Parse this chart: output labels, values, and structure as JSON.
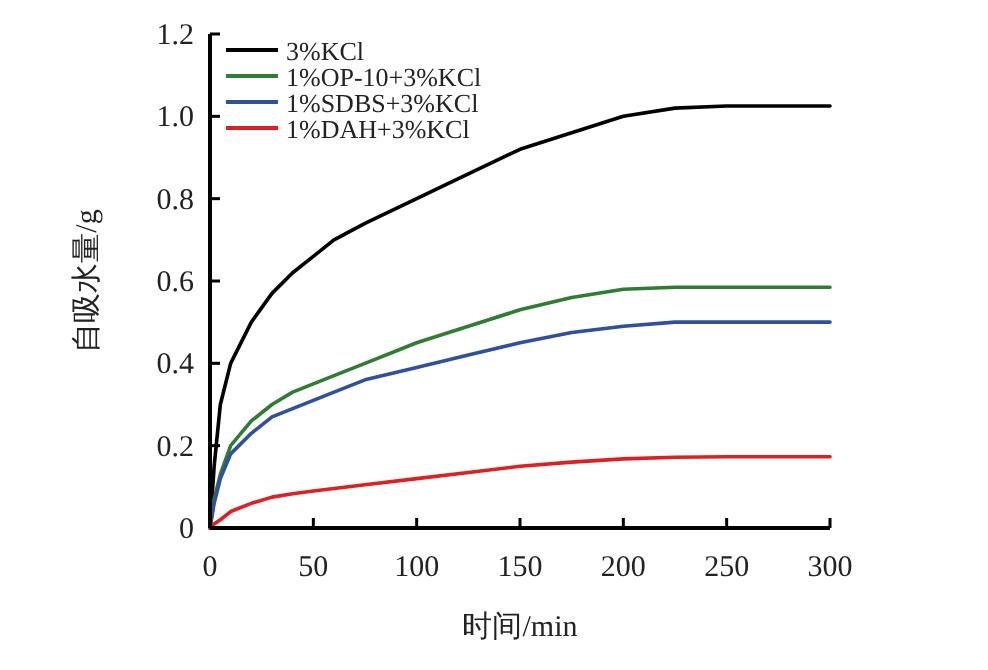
{
  "chart_data": {
    "type": "line",
    "xlabel": "时间/min",
    "ylabel": "自吸水量/g",
    "xlim": [
      0,
      300
    ],
    "ylim": [
      0,
      1.2
    ],
    "xticks": [
      0,
      50,
      100,
      150,
      200,
      250,
      300
    ],
    "yticks": [
      {
        "value": 0,
        "label": "0"
      },
      {
        "value": 0.2,
        "label": "0.2"
      },
      {
        "value": 0.4,
        "label": "0.4"
      },
      {
        "value": 0.6,
        "label": "0.6"
      },
      {
        "value": 0.8,
        "label": "0.8"
      },
      {
        "value": 1.0,
        "label": "1.0"
      },
      {
        "value": 1.2,
        "label": "1.2"
      }
    ],
    "legend": "top left",
    "grid": false,
    "marker": "none",
    "line_style": "solid",
    "x": [
      0,
      2,
      5,
      10,
      20,
      30,
      40,
      50,
      60,
      75,
      100,
      125,
      150,
      175,
      200,
      225,
      250,
      300
    ],
    "series": [
      {
        "name": "3%KCl",
        "color": "#000000",
        "values": [
          0,
          0.15,
          0.3,
          0.4,
          0.5,
          0.57,
          0.62,
          0.66,
          0.7,
          0.74,
          0.8,
          0.86,
          0.92,
          0.96,
          1.0,
          1.02,
          1.025,
          1.025
        ]
      },
      {
        "name": "1%OP-10+3%KCl",
        "color": "#2e7d32",
        "values": [
          0,
          0.07,
          0.13,
          0.2,
          0.26,
          0.3,
          0.33,
          0.35,
          0.37,
          0.4,
          0.45,
          0.49,
          0.53,
          0.56,
          0.58,
          0.585,
          0.585,
          0.585
        ]
      },
      {
        "name": "1%SDBS+3%KCl",
        "color": "#2f4fa0",
        "values": [
          0,
          0.06,
          0.12,
          0.18,
          0.23,
          0.27,
          0.29,
          0.31,
          0.33,
          0.36,
          0.39,
          0.42,
          0.45,
          0.475,
          0.49,
          0.5,
          0.5,
          0.5
        ]
      },
      {
        "name": "1%DAH+3%KCl",
        "color": "#e02020",
        "values": [
          0,
          0.01,
          0.02,
          0.04,
          0.06,
          0.075,
          0.083,
          0.09,
          0.096,
          0.105,
          0.12,
          0.135,
          0.15,
          0.16,
          0.168,
          0.172,
          0.173,
          0.173
        ]
      }
    ]
  }
}
